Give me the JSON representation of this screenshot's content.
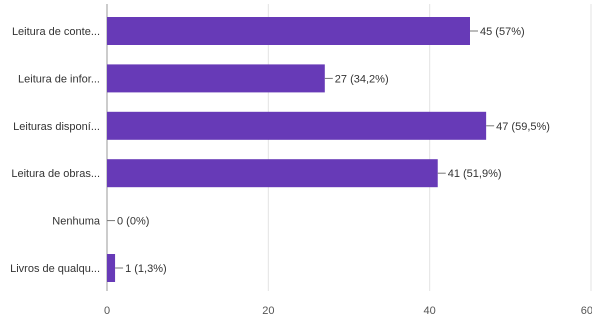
{
  "chart_data": {
    "type": "bar",
    "orientation": "horizontal",
    "categories": [
      "Leitura de conte...",
      "Leitura de infor...",
      "Leituras disponí...",
      "Leitura de obras...",
      "Nenhuma",
      "Livros de qualqu..."
    ],
    "values": [
      45,
      27,
      47,
      41,
      0,
      1
    ],
    "data_labels": [
      "45 (57%)",
      "27 (34,2%)",
      "47 (59,5%)",
      "41 (51,9%)",
      "0 (0%)",
      "1 (1,3%)"
    ],
    "x_ticks": [
      "0",
      "20",
      "40",
      "60"
    ],
    "xlim": [
      0,
      60
    ],
    "grid": true,
    "bar_color": "#673ab7",
    "title": "",
    "xlabel": "",
    "ylabel": ""
  }
}
